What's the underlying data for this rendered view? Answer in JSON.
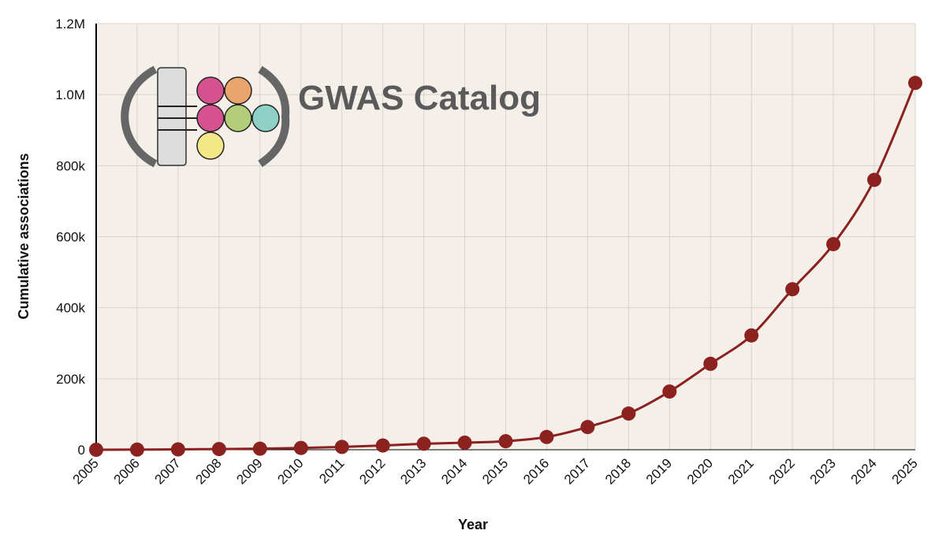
{
  "chart_data": {
    "type": "line",
    "logo_text": "GWAS Catalog",
    "x_label": "Year",
    "y_label": "Cumulative associations",
    "categories": [
      "2005",
      "2006",
      "2007",
      "2008",
      "2009",
      "2010",
      "2011",
      "2012",
      "2013",
      "2014",
      "2015",
      "2016",
      "2017",
      "2018",
      "2019",
      "2020",
      "2021",
      "2022",
      "2023",
      "2024",
      "2025"
    ],
    "series": [
      {
        "name": "Cumulative associations",
        "color": "#8b2220",
        "values": [
          0,
          500,
          1000,
          2000,
          3000,
          5000,
          8000,
          12000,
          17000,
          20000,
          24000,
          36000,
          64000,
          102000,
          164000,
          242000,
          322000,
          452000,
          579000,
          760000,
          1033000
        ]
      }
    ],
    "ylim": [
      0,
      1200000
    ],
    "yticks": [
      0,
      {
        "value": 200000,
        "label": "200k"
      },
      {
        "value": 400000,
        "label": "400k"
      },
      {
        "value": 600000,
        "label": "600k"
      },
      {
        "value": 800000,
        "label": "800k"
      },
      {
        "value": 1000000,
        "label": "1.0M"
      },
      {
        "value": 1200000,
        "label": "1.2M"
      }
    ],
    "grid": true,
    "background": "#f4efe9"
  }
}
